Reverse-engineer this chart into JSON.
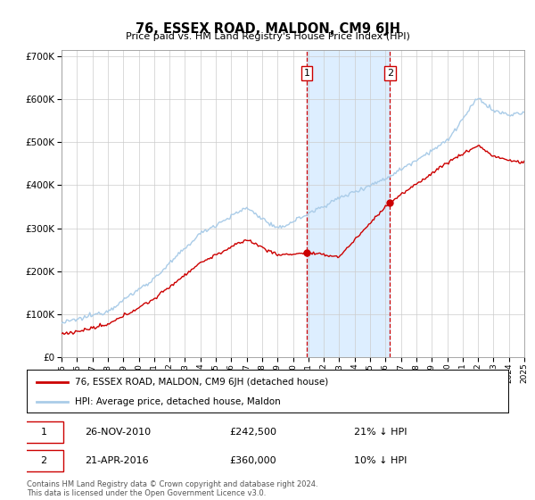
{
  "title": "76, ESSEX ROAD, MALDON, CM9 6JH",
  "subtitle": "Price paid vs. HM Land Registry's House Price Index (HPI)",
  "x_start_year": 1995,
  "x_end_year": 2025,
  "y_min": 0,
  "y_max": 700000,
  "y_ticks": [
    0,
    100000,
    200000,
    300000,
    400000,
    500000,
    600000,
    700000
  ],
  "y_tick_labels": [
    "£0",
    "£100K",
    "£200K",
    "£300K",
    "£400K",
    "£500K",
    "£600K",
    "£700K"
  ],
  "hpi_color": "#aacce8",
  "price_color": "#cc0000",
  "sale1_date": "26-NOV-2010",
  "sale1_price": 242500,
  "sale1_hpi_diff": "21% ↓ HPI",
  "sale1_year": 2010.9,
  "sale2_date": "21-APR-2016",
  "sale2_price": 360000,
  "sale2_hpi_diff": "10% ↓ HPI",
  "sale2_year": 2016.3,
  "legend_label1": "76, ESSEX ROAD, MALDON, CM9 6JH (detached house)",
  "legend_label2": "HPI: Average price, detached house, Maldon",
  "footnote": "Contains HM Land Registry data © Crown copyright and database right 2024.\nThis data is licensed under the Open Government Licence v3.0.",
  "shaded_region_color": "#ddeeff",
  "vline_color": "#cc0000",
  "grid_color": "#cccccc",
  "sale1_hpi_val": 308000,
  "sale2_hpi_val": 400000
}
